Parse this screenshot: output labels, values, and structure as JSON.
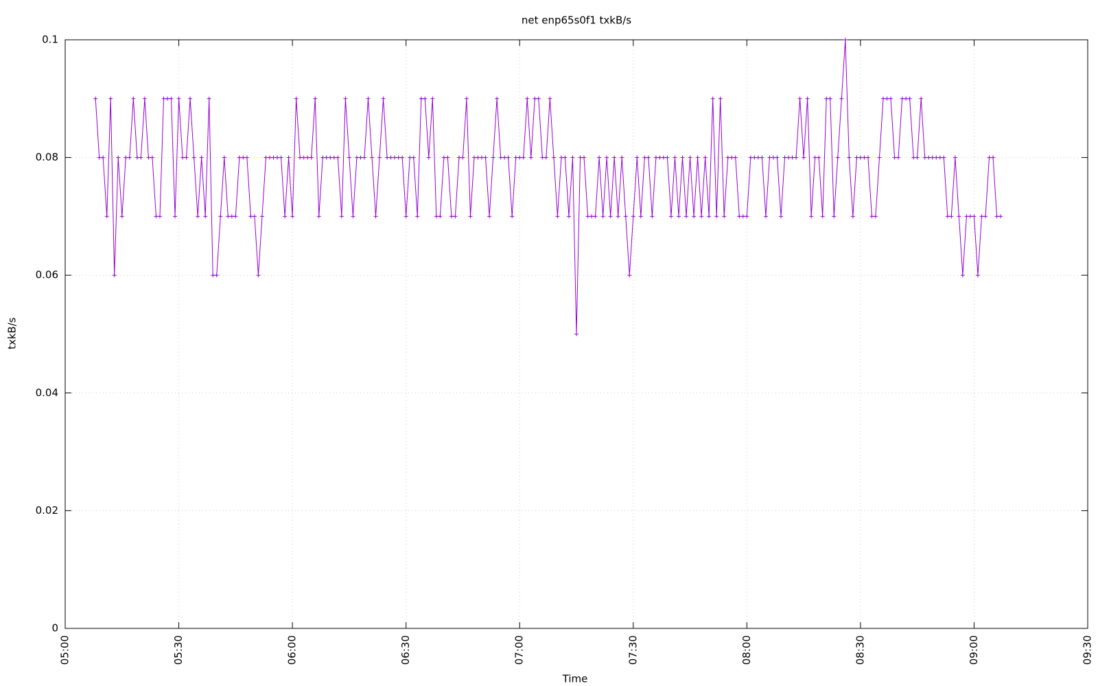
{
  "chart_data": {
    "type": "line",
    "title": "net enp65s0f1 txkB/s",
    "x_label": "Time",
    "y_label": "txkB/s",
    "x": [
      "05:08",
      "05:09",
      "05:10",
      "05:11",
      "05:12",
      "05:13",
      "05:14",
      "05:15",
      "05:16",
      "05:17",
      "05:18",
      "05:19",
      "05:20",
      "05:21",
      "05:22",
      "05:23",
      "05:24",
      "05:25",
      "05:26",
      "05:27",
      "05:28",
      "05:29",
      "05:30",
      "05:31",
      "05:32",
      "05:33",
      "05:34",
      "05:35",
      "05:36",
      "05:37",
      "05:38",
      "05:39",
      "05:40",
      "05:41",
      "05:42",
      "05:43",
      "05:44",
      "05:45",
      "05:46",
      "05:47",
      "05:48",
      "05:49",
      "05:50",
      "05:51",
      "05:52",
      "05:53",
      "05:54",
      "05:55",
      "05:56",
      "05:57",
      "05:58",
      "05:59",
      "06:00",
      "06:01",
      "06:02",
      "06:03",
      "06:04",
      "06:05",
      "06:06",
      "06:07",
      "06:08",
      "06:09",
      "06:10",
      "06:11",
      "06:12",
      "06:13",
      "06:14",
      "06:15",
      "06:16",
      "06:17",
      "06:18",
      "06:19",
      "06:20",
      "06:21",
      "06:22",
      "06:23",
      "06:24",
      "06:25",
      "06:26",
      "06:27",
      "06:28",
      "06:29",
      "06:30",
      "06:31",
      "06:32",
      "06:33",
      "06:34",
      "06:35",
      "06:36",
      "06:37",
      "06:38",
      "06:39",
      "06:40",
      "06:41",
      "06:42",
      "06:43",
      "06:44",
      "06:45",
      "06:46",
      "06:47",
      "06:48",
      "06:49",
      "06:50",
      "06:51",
      "06:52",
      "06:53",
      "06:54",
      "06:55",
      "06:56",
      "06:57",
      "06:58",
      "06:59",
      "07:00",
      "07:01",
      "07:02",
      "07:03",
      "07:04",
      "07:05",
      "07:06",
      "07:07",
      "07:08",
      "07:09",
      "07:10",
      "07:11",
      "07:12",
      "07:13",
      "07:14",
      "07:15",
      "07:16",
      "07:17",
      "07:18",
      "07:19",
      "07:20",
      "07:21",
      "07:22",
      "07:23",
      "07:24",
      "07:25",
      "07:26",
      "07:27",
      "07:28",
      "07:29",
      "07:30",
      "07:31",
      "07:32",
      "07:33",
      "07:34",
      "07:35",
      "07:36",
      "07:37",
      "07:38",
      "07:39",
      "07:40",
      "07:41",
      "07:42",
      "07:43",
      "07:44",
      "07:45",
      "07:46",
      "07:47",
      "07:48",
      "07:49",
      "07:50",
      "07:51",
      "07:52",
      "07:53",
      "07:54",
      "07:55",
      "07:56",
      "07:57",
      "07:58",
      "07:59",
      "08:00",
      "08:01",
      "08:02",
      "08:03",
      "08:04",
      "08:05",
      "08:06",
      "08:07",
      "08:08",
      "08:09",
      "08:10",
      "08:11",
      "08:12",
      "08:13",
      "08:14",
      "08:15",
      "08:16",
      "08:17",
      "08:18",
      "08:19",
      "08:20",
      "08:21",
      "08:22",
      "08:23",
      "08:24",
      "08:25",
      "08:26",
      "08:27",
      "08:28",
      "08:29",
      "08:30",
      "08:31",
      "08:32",
      "08:33",
      "08:34",
      "08:35",
      "08:36",
      "08:37",
      "08:38",
      "08:39",
      "08:40",
      "08:41",
      "08:42",
      "08:43",
      "08:44",
      "08:45",
      "08:46",
      "08:47",
      "08:48",
      "08:49",
      "08:50",
      "08:51",
      "08:52",
      "08:53",
      "08:54",
      "08:55",
      "08:56",
      "08:57",
      "08:58",
      "08:59",
      "09:00",
      "09:01",
      "09:02",
      "09:03",
      "09:04",
      "09:05",
      "09:06",
      "09:07"
    ],
    "series": [
      {
        "color": "#9400d3",
        "values": [
          0.09,
          0.08,
          0.08,
          0.07,
          0.09,
          0.06,
          0.08,
          0.07,
          0.08,
          0.08,
          0.09,
          0.08,
          0.08,
          0.09,
          0.08,
          0.08,
          0.07,
          0.07,
          0.09,
          0.09,
          0.09,
          0.07,
          0.09,
          0.08,
          0.08,
          0.09,
          0.08,
          0.07,
          0.08,
          0.07,
          0.09,
          0.06,
          0.06,
          0.07,
          0.08,
          0.07,
          0.07,
          0.07,
          0.08,
          0.08,
          0.08,
          0.07,
          0.07,
          0.06,
          0.07,
          0.08,
          0.08,
          0.08,
          0.08,
          0.08,
          0.07,
          0.08,
          0.07,
          0.09,
          0.08,
          0.08,
          0.08,
          0.08,
          0.09,
          0.07,
          0.08,
          0.08,
          0.08,
          0.08,
          0.08,
          0.07,
          0.09,
          0.08,
          0.07,
          0.08,
          0.08,
          0.08,
          0.09,
          0.08,
          0.07,
          0.08,
          0.09,
          0.08,
          0.08,
          0.08,
          0.08,
          0.08,
          0.07,
          0.08,
          0.08,
          0.07,
          0.09,
          0.09,
          0.08,
          0.09,
          0.07,
          0.07,
          0.08,
          0.08,
          0.07,
          0.07,
          0.08,
          0.08,
          0.09,
          0.07,
          0.08,
          0.08,
          0.08,
          0.08,
          0.07,
          0.08,
          0.09,
          0.08,
          0.08,
          0.08,
          0.07,
          0.08,
          0.08,
          0.08,
          0.09,
          0.08,
          0.09,
          0.09,
          0.08,
          0.08,
          0.09,
          0.08,
          0.07,
          0.08,
          0.08,
          0.07,
          0.08,
          0.05,
          0.08,
          0.08,
          0.07,
          0.07,
          0.07,
          0.08,
          0.07,
          0.08,
          0.07,
          0.08,
          0.07,
          0.08,
          0.07,
          0.06,
          0.07,
          0.08,
          0.07,
          0.08,
          0.08,
          0.07,
          0.08,
          0.08,
          0.08,
          0.08,
          0.07,
          0.08,
          0.07,
          0.08,
          0.07,
          0.08,
          0.07,
          0.08,
          0.07,
          0.08,
          0.07,
          0.09,
          0.07,
          0.09,
          0.07,
          0.08,
          0.08,
          0.08,
          0.07,
          0.07,
          0.07,
          0.08,
          0.08,
          0.08,
          0.08,
          0.07,
          0.08,
          0.08,
          0.08,
          0.07,
          0.08,
          0.08,
          0.08,
          0.08,
          0.09,
          0.08,
          0.09,
          0.07,
          0.08,
          0.08,
          0.07,
          0.09,
          0.09,
          0.07,
          0.08,
          0.09,
          0.1,
          0.08,
          0.07,
          0.08,
          0.08,
          0.08,
          0.08,
          0.07,
          0.07,
          0.08,
          0.09,
          0.09,
          0.09,
          0.08,
          0.08,
          0.09,
          0.09,
          0.09,
          0.08,
          0.08,
          0.09,
          0.08,
          0.08,
          0.08,
          0.08,
          0.08,
          0.08,
          0.07,
          0.07,
          0.08,
          0.07,
          0.06,
          0.07,
          0.07,
          0.07,
          0.06,
          0.07,
          0.07,
          0.08,
          0.08,
          0.07,
          0.07
        ]
      }
    ],
    "xlim": [
      "05:00",
      "09:30"
    ],
    "xticks": [
      "05:00",
      "05:30",
      "06:00",
      "06:30",
      "07:00",
      "07:30",
      "08:00",
      "08:30",
      "09:00",
      "09:30"
    ],
    "ylim": [
      0,
      0.1
    ],
    "yticks": [
      0,
      0.02,
      0.04,
      0.06,
      0.08,
      0.1
    ],
    "grid": true
  }
}
